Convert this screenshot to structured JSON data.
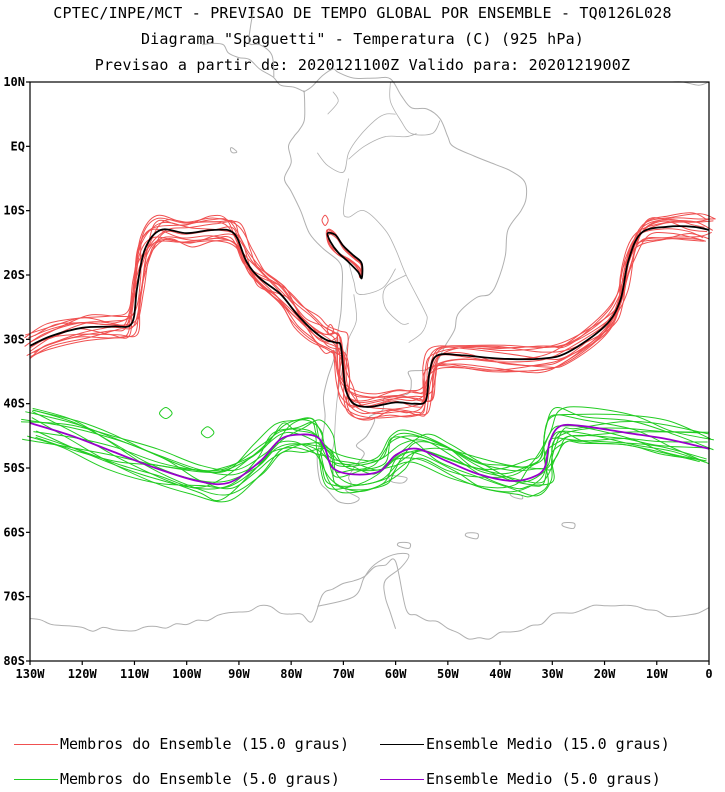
{
  "header": {
    "line1": "CPTEC/INPE/MCT - PREVISAO DE TEMPO GLOBAL POR ENSEMBLE - TQ0126L028",
    "line2": "Diagrama \"Spaguetti\" - Temperatura (C) (925 hPa)",
    "line3": "Previsao a partir de: 2020121100Z  Valido para: 2020121900Z"
  },
  "map": {
    "lat_labels": [
      "10N",
      "EQ",
      "10S",
      "20S",
      "30S",
      "40S",
      "50S",
      "60S",
      "70S",
      "80S"
    ],
    "lon_labels": [
      "130W",
      "120W",
      "110W",
      "100W",
      "90W",
      "80W",
      "70W",
      "60W",
      "50W",
      "40W",
      "30W",
      "20W",
      "10W",
      "0"
    ],
    "lon_range": [
      -130,
      0
    ],
    "lat_range": [
      -80,
      10
    ],
    "coast_color": "#b0b0b0"
  },
  "legend": {
    "members_15_label": "Membros do Ensemble (15.0 graus)",
    "mean_15_label": "Ensemble Medio (15.0 graus)",
    "members_5_label": "Membros do Ensemble (5.0 graus)",
    "mean_5_label": "Ensemble Medio (5.0 graus)",
    "colors": {
      "members_15": "#f05050",
      "mean_15": "#000000",
      "members_5": "#22cc22",
      "mean_5": "#9900cc"
    }
  }
}
